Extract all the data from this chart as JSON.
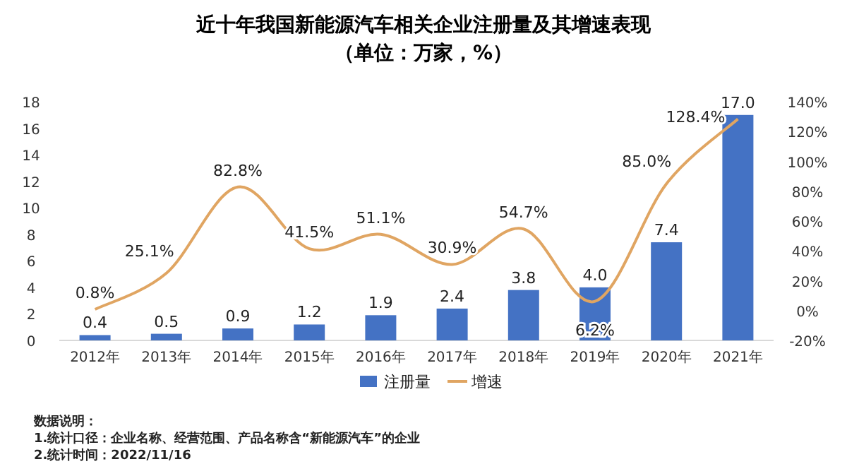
{
  "chart_data": {
    "type": "bar",
    "title": "近十年我国新能源汽车相关企业注册量及其增速表现",
    "subtitle": "（单位：万家，%）",
    "categories": [
      "2012年",
      "2013年",
      "2014年",
      "2015年",
      "2016年",
      "2017年",
      "2018年",
      "2019年",
      "2020年",
      "2021年"
    ],
    "series": [
      {
        "name": "注册量",
        "color": "#4472c4",
        "values": [
          0.4,
          0.5,
          0.9,
          1.2,
          1.9,
          2.4,
          3.8,
          4.0,
          7.4,
          17.0
        ],
        "value_labels": [
          "0.4",
          "0.5",
          "0.9",
          "1.2",
          "1.9",
          "2.4",
          "3.8",
          "4.0",
          "7.4",
          "17.0"
        ]
      },
      {
        "name": "增速",
        "type": "line",
        "axis": "y2",
        "color": "#e0a562",
        "values": [
          0.8,
          25.1,
          82.8,
          41.5,
          51.1,
          30.9,
          54.7,
          6.2,
          85.0,
          128.4
        ],
        "value_labels": [
          "0.8%",
          "25.1%",
          "82.8%",
          "41.5%",
          "51.1%",
          "30.9%",
          "54.7%",
          "6.2%",
          "85.0%",
          "128.4%"
        ]
      }
    ],
    "ylim": [
      0,
      18
    ],
    "yticks": [
      0,
      2,
      4,
      6,
      8,
      10,
      12,
      14,
      16,
      18
    ],
    "y2lim": [
      -20,
      140
    ],
    "y2ticks": [
      {
        "value": -20,
        "label": "-20%"
      },
      {
        "value": 0,
        "label": "0%"
      },
      {
        "value": 20,
        "label": "20%"
      },
      {
        "value": 40,
        "label": "40%"
      },
      {
        "value": 60,
        "label": "60%"
      },
      {
        "value": 80,
        "label": "80%"
      },
      {
        "value": 100,
        "label": "100%"
      },
      {
        "value": 120,
        "label": "120%"
      },
      {
        "value": 140,
        "label": "140%"
      }
    ],
    "legend": "bottom",
    "marker": "none",
    "annotations": [
      "数据说明：",
      "1.统计口径：企业名称、经营范围、产品名称含“新能源汽车”的企业",
      "2.统计时间：2022/11/16"
    ]
  }
}
